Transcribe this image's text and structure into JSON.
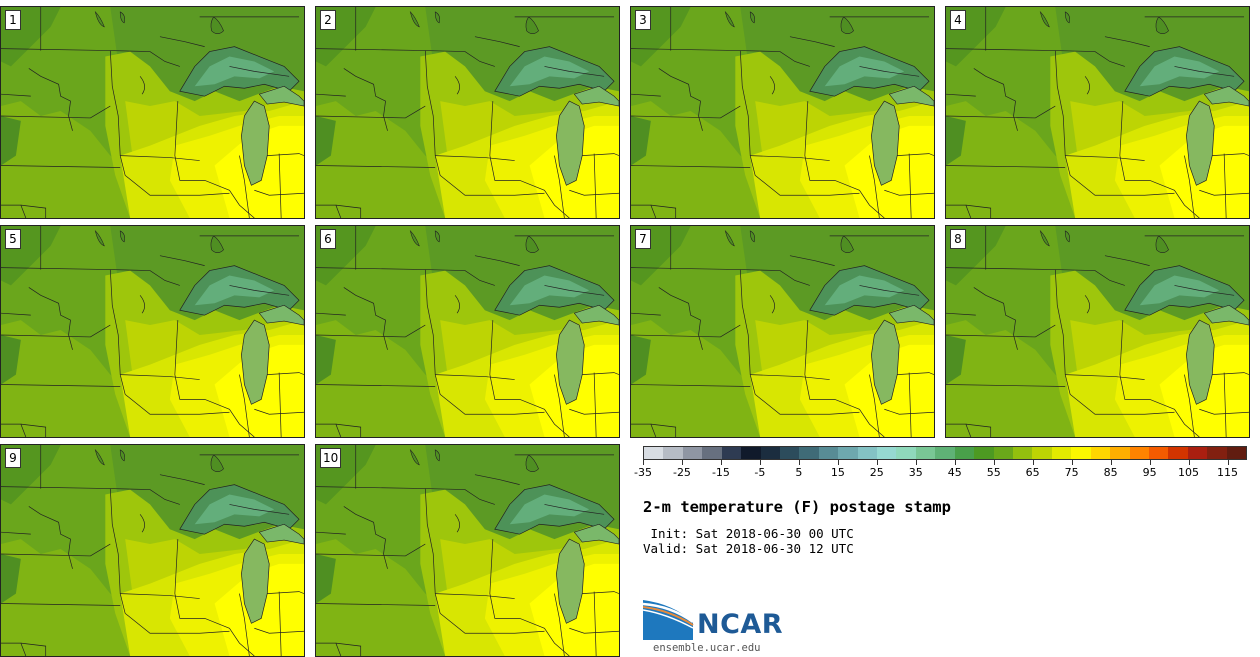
{
  "panels": [
    {
      "label": "1"
    },
    {
      "label": "2"
    },
    {
      "label": "3"
    },
    {
      "label": "4"
    },
    {
      "label": "5"
    },
    {
      "label": "6"
    },
    {
      "label": "7"
    },
    {
      "label": "8"
    },
    {
      "label": "9"
    },
    {
      "label": "10"
    }
  ],
  "colorbar": {
    "colors": [
      "#d8dde3",
      "#b6bcc5",
      "#8f96a3",
      "#67707f",
      "#2e3b52",
      "#101a2b",
      "#1b2d3f",
      "#2c4c5c",
      "#3f6b77",
      "#588c95",
      "#6ea8ae",
      "#84c2c4",
      "#96d9d1",
      "#8fd9bb",
      "#79c795",
      "#5fb276",
      "#49a04a",
      "#4d9a22",
      "#6aa81a",
      "#93c00e",
      "#bdd404",
      "#e3ea00",
      "#fbf800",
      "#ffd600",
      "#ffae00",
      "#ff8300",
      "#f45b00",
      "#d23400",
      "#aa1f10",
      "#822010",
      "#611c10"
    ],
    "tick_values": [
      "-35",
      "-25",
      "-15",
      "-5",
      "5",
      "15",
      "25",
      "35",
      "45",
      "55",
      "65",
      "75",
      "85",
      "95",
      "105",
      "115"
    ]
  },
  "title": "2-m temperature (F) postage stamp",
  "init_text": " Init: Sat 2018-06-30 00 UTC",
  "valid_text": "Valid: Sat 2018-06-30 12 UTC",
  "logo": {
    "name": "NCAR",
    "site": "ensemble.ucar.edu"
  }
}
